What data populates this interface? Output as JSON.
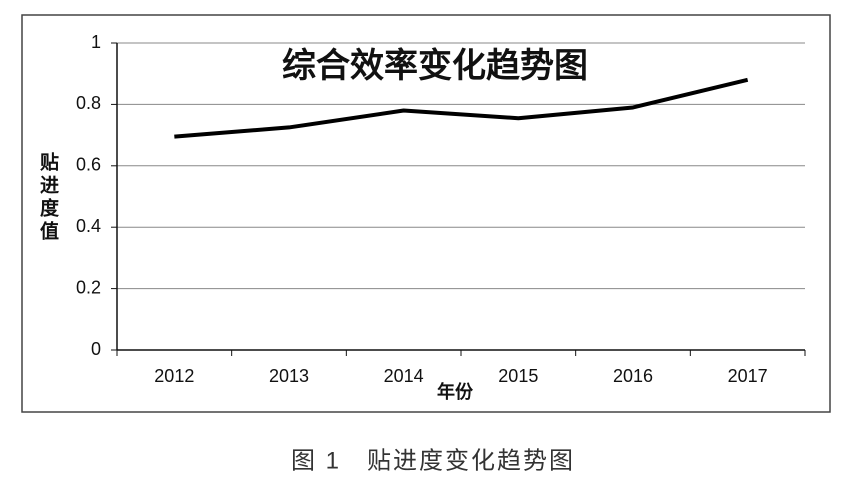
{
  "chart_data": {
    "type": "line",
    "title": "综合效率变化趋势图",
    "x_label": "年份",
    "y_label": "贴进度值",
    "caption": "图 1　贴进度变化趋势图",
    "categories": [
      "2012",
      "2013",
      "2014",
      "2015",
      "2016",
      "2017"
    ],
    "values": [
      0.695,
      0.725,
      0.78,
      0.755,
      0.79,
      0.88
    ],
    "color": "#000000",
    "ylim": [
      0,
      1
    ],
    "yticks": [
      0,
      0.2,
      0.4,
      0.6,
      0.8,
      1
    ],
    "grid": true
  }
}
